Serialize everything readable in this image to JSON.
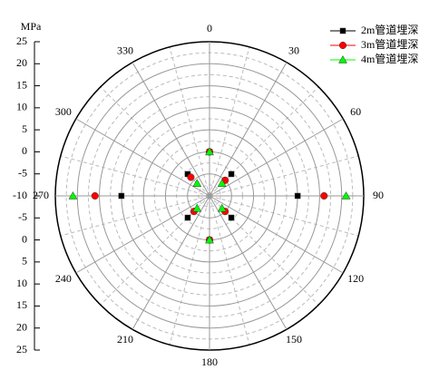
{
  "chart_data": {
    "type": "polar-scatter",
    "r_axis_label": "MPa",
    "theta": [
      0,
      45,
      90,
      135,
      180,
      225,
      270,
      315
    ],
    "rlim": [
      -10,
      25
    ],
    "rticks": [
      -10,
      -5,
      0,
      5,
      10,
      15,
      20,
      25
    ],
    "thetaticks": [
      0,
      30,
      60,
      90,
      120,
      150,
      180,
      210,
      240,
      270,
      300,
      330
    ],
    "grid": true,
    "legend": "upper right",
    "series": [
      {
        "name": "2m管道埋深",
        "color": "#000000",
        "marker": "square",
        "values": [
          0,
          -3,
          10,
          -3,
          0,
          -3,
          10,
          -3
        ]
      },
      {
        "name": "3m管道埋深",
        "color": "#ff0000",
        "marker": "circle",
        "values": [
          0,
          -5,
          16,
          -5,
          0,
          -5,
          16,
          -4
        ]
      },
      {
        "name": "4m管道埋深",
        "color": "#00ff00",
        "marker": "triangle",
        "values": [
          0,
          -6,
          21,
          -6,
          0,
          -6,
          21,
          -6
        ]
      }
    ]
  }
}
